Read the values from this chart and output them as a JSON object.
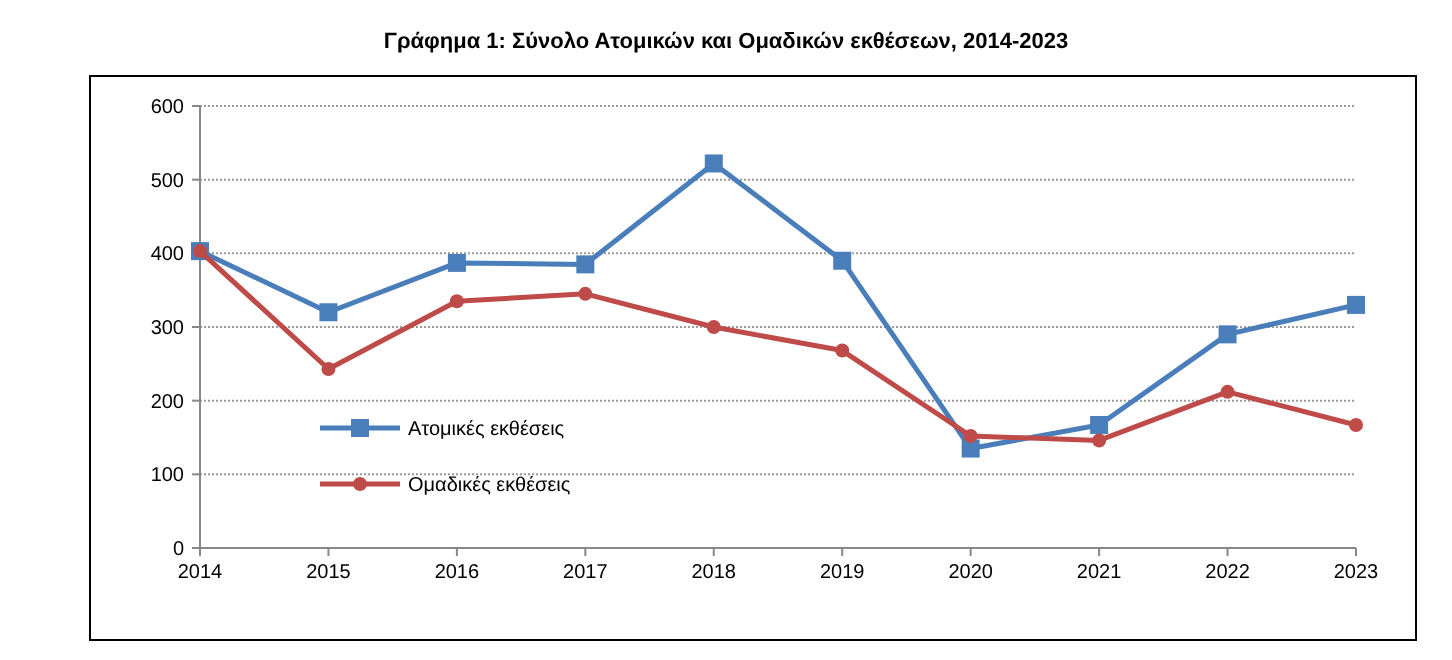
{
  "chart_data": {
    "type": "line",
    "title": "Γράφημα 1: Σύνολο Ατομικών και Ομαδικών εκθέσεων, 2014-2023",
    "x": [
      2014,
      2015,
      2016,
      2017,
      2018,
      2019,
      2020,
      2021,
      2022,
      2023
    ],
    "xlim": [
      2014,
      2023
    ],
    "xticks": [
      2014,
      2015,
      2016,
      2017,
      2018,
      2019,
      2020,
      2021,
      2022,
      2023
    ],
    "ylim": [
      0,
      600
    ],
    "yticks": [
      0,
      100,
      200,
      300,
      400,
      500,
      600
    ],
    "grid": "y",
    "legend": "bottom left",
    "line_style": "solid",
    "series": [
      {
        "name": "Ατομικές εκθέσεις",
        "color": "#4a7ebb",
        "marker": "square",
        "values": [
          403,
          320,
          387,
          385,
          522,
          390,
          135,
          167,
          290,
          330
        ]
      },
      {
        "name": "Ομαδικές εκθέσεις",
        "color": "#be4b48",
        "marker": "circle",
        "values": [
          403,
          243,
          335,
          345,
          300,
          268,
          152,
          146,
          212,
          167
        ]
      }
    ]
  }
}
